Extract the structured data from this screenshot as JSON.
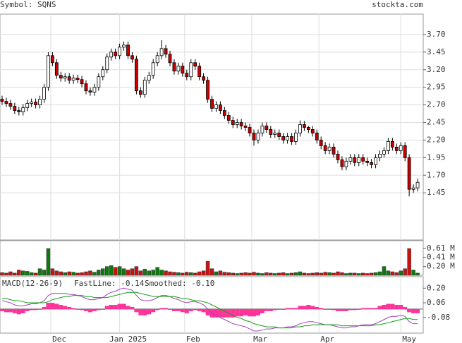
{
  "header": {
    "symbol": "Symbol: SQNS",
    "site": "stockta.com"
  },
  "chart_data": [
    {
      "type": "candlestick",
      "open": [
        2.78,
        2.75,
        2.72,
        2.68,
        2.62,
        2.6,
        2.66,
        2.72,
        2.74,
        2.7,
        2.78,
        2.95,
        3.4,
        3.3,
        3.12,
        3.08,
        3.1,
        3.05,
        3.08,
        3.06,
        3.0,
        2.9,
        2.88,
        2.95,
        3.1,
        3.2,
        3.38,
        3.45,
        3.4,
        3.52,
        3.55,
        3.4,
        3.35,
        2.9,
        2.85,
        3.05,
        3.12,
        3.3,
        3.4,
        3.5,
        3.42,
        3.3,
        3.18,
        3.25,
        3.15,
        3.1,
        3.3,
        3.25,
        3.1,
        3.05,
        2.78,
        2.65,
        2.7,
        2.62,
        2.55,
        2.48,
        2.42,
        2.45,
        2.4,
        2.38,
        2.3,
        2.2,
        2.3,
        2.4,
        2.35,
        2.28,
        2.3,
        2.25,
        2.2,
        2.25,
        2.18,
        2.3,
        2.42,
        2.38,
        2.35,
        2.3,
        2.2,
        2.12,
        2.05,
        2.1,
        2.0,
        1.92,
        1.82,
        1.9,
        1.95,
        1.88,
        1.95,
        1.9,
        1.88,
        1.85,
        1.95,
        2.0,
        2.05,
        2.18,
        2.1,
        2.05,
        2.12,
        1.95,
        1.5,
        1.52
      ],
      "high": [
        2.83,
        2.8,
        2.77,
        2.73,
        2.67,
        2.71,
        2.77,
        2.79,
        2.79,
        2.83,
        3.0,
        3.45,
        3.45,
        3.35,
        3.17,
        3.15,
        3.15,
        3.13,
        3.13,
        3.11,
        3.05,
        2.95,
        3.0,
        3.15,
        3.25,
        3.43,
        3.5,
        3.5,
        3.57,
        3.6,
        3.6,
        3.45,
        3.4,
        2.95,
        3.1,
        3.17,
        3.35,
        3.45,
        3.62,
        3.55,
        3.47,
        3.35,
        3.3,
        3.3,
        3.2,
        3.35,
        3.35,
        3.3,
        3.15,
        3.1,
        2.83,
        2.75,
        2.75,
        2.67,
        2.6,
        2.53,
        2.5,
        2.5,
        2.45,
        2.43,
        2.35,
        2.35,
        2.45,
        2.45,
        2.4,
        2.35,
        2.35,
        2.3,
        2.3,
        2.3,
        2.35,
        2.48,
        2.47,
        2.4,
        2.4,
        2.35,
        2.25,
        2.17,
        2.15,
        2.15,
        2.05,
        1.97,
        1.95,
        2.0,
        2.0,
        2.0,
        2.0,
        1.95,
        1.93,
        2.0,
        2.05,
        2.1,
        2.23,
        2.23,
        2.15,
        2.17,
        2.17,
        2.0,
        1.57,
        1.65
      ],
      "low": [
        2.7,
        2.67,
        2.63,
        2.57,
        2.55,
        2.55,
        2.61,
        2.67,
        2.65,
        2.65,
        2.73,
        2.9,
        3.25,
        3.07,
        3.03,
        3.03,
        3.0,
        3.0,
        3.01,
        2.95,
        2.85,
        2.83,
        2.83,
        2.9,
        3.05,
        3.15,
        3.33,
        3.35,
        3.35,
        3.47,
        3.35,
        3.3,
        2.85,
        2.8,
        2.8,
        3.0,
        3.07,
        3.25,
        3.35,
        3.37,
        3.25,
        3.13,
        3.13,
        3.1,
        3.05,
        3.05,
        3.2,
        3.05,
        3.0,
        2.73,
        2.6,
        2.6,
        2.57,
        2.5,
        2.43,
        2.37,
        2.37,
        2.35,
        2.33,
        2.25,
        2.12,
        2.15,
        2.25,
        2.3,
        2.23,
        2.23,
        2.2,
        2.15,
        2.15,
        2.13,
        2.13,
        2.25,
        2.33,
        2.3,
        2.25,
        2.15,
        2.07,
        2.0,
        2.0,
        1.95,
        1.87,
        1.77,
        1.77,
        1.85,
        1.83,
        1.83,
        1.85,
        1.83,
        1.8,
        1.8,
        1.9,
        1.95,
        2.0,
        2.05,
        2.0,
        2.0,
        1.9,
        1.4,
        1.45,
        1.47
      ],
      "close": [
        2.75,
        2.72,
        2.68,
        2.62,
        2.6,
        2.66,
        2.72,
        2.74,
        2.7,
        2.78,
        2.95,
        3.4,
        3.3,
        3.12,
        3.08,
        3.1,
        3.05,
        3.08,
        3.06,
        3.0,
        2.9,
        2.88,
        2.95,
        3.1,
        3.2,
        3.38,
        3.45,
        3.4,
        3.52,
        3.55,
        3.4,
        3.35,
        2.9,
        2.85,
        3.05,
        3.12,
        3.3,
        3.4,
        3.5,
        3.42,
        3.3,
        3.18,
        3.25,
        3.15,
        3.1,
        3.3,
        3.25,
        3.1,
        3.05,
        2.78,
        2.65,
        2.7,
        2.62,
        2.55,
        2.48,
        2.42,
        2.45,
        2.4,
        2.38,
        2.3,
        2.2,
        2.3,
        2.4,
        2.35,
        2.28,
        2.3,
        2.25,
        2.2,
        2.25,
        2.18,
        2.3,
        2.42,
        2.38,
        2.35,
        2.3,
        2.2,
        2.12,
        2.05,
        2.1,
        2.0,
        1.92,
        1.82,
        1.9,
        1.95,
        1.88,
        1.95,
        1.9,
        1.88,
        1.85,
        1.95,
        2.0,
        2.05,
        2.18,
        2.1,
        2.05,
        2.12,
        1.95,
        1.5,
        1.52,
        1.6
      ],
      "up_color": "#ffffff",
      "down_color": "#cc0000",
      "ylim": [
        0.78,
        3.99
      ],
      "yticks": [
        {
          "value": 3.7,
          "label": "3.70"
        },
        3.45,
        {
          "value": 3.2,
          "label": "3.20"
        },
        2.95,
        {
          "value": 2.7,
          "label": "2.70"
        },
        2.45,
        {
          "value": 2.2,
          "label": "2.20"
        },
        1.95,
        {
          "value": 1.7,
          "label": "1.70"
        },
        1.45
      ],
      "xticks": [
        {
          "value": 11.6,
          "label": "Dec"
        },
        {
          "value": 28,
          "label": "Jan 2025"
        },
        {
          "value": 43.5,
          "label": "Feb"
        },
        {
          "value": 59.5,
          "label": "Mar"
        },
        {
          "value": 75.5,
          "label": "Apr"
        },
        {
          "value": 95,
          "label": "May"
        }
      ],
      "grid": true
    },
    {
      "type": "volume",
      "values": [
        0.06,
        0.05,
        0.08,
        0.05,
        0.12,
        0.1,
        0.09,
        0.06,
        0.05,
        0.15,
        0.12,
        0.61,
        0.15,
        0.1,
        0.08,
        0.06,
        0.08,
        0.07,
        0.05,
        0.06,
        0.08,
        0.1,
        0.07,
        0.12,
        0.15,
        0.2,
        0.22,
        0.18,
        0.2,
        0.15,
        0.12,
        0.15,
        0.2,
        0.1,
        0.14,
        0.1,
        0.12,
        0.18,
        0.12,
        0.1,
        0.08,
        0.07,
        0.06,
        0.05,
        0.07,
        0.06,
        0.05,
        0.08,
        0.1,
        0.32,
        0.15,
        0.08,
        0.1,
        0.07,
        0.06,
        0.05,
        0.04,
        0.05,
        0.06,
        0.05,
        0.07,
        0.05,
        0.04,
        0.06,
        0.05,
        0.04,
        0.05,
        0.06,
        0.04,
        0.05,
        0.06,
        0.08,
        0.05,
        0.04,
        0.05,
        0.06,
        0.05,
        0.07,
        0.06,
        0.05,
        0.08,
        0.06,
        0.04,
        0.05,
        0.05,
        0.04,
        0.05,
        0.04,
        0.05,
        0.06,
        0.08,
        0.2,
        0.1,
        0.08,
        0.06,
        0.1,
        0.15,
        0.61,
        0.12,
        0.05
      ],
      "up_color": "#117711",
      "down_color": "#cc1111",
      "ylim": [
        0,
        0.79
      ],
      "yticks": [
        {
          "value": 0.61,
          "label": "0.61 M"
        },
        {
          "value": 0.41,
          "label": "0.41 M"
        },
        {
          "value": 0.2,
          "label": "0.20 M"
        }
      ]
    },
    {
      "type": "macd",
      "title": "MACD(12-26-9)",
      "fast_label": "FastLine: -0.14",
      "smooth_label": "Smoothed: -0.10",
      "series": [
        {
          "color": "#a040c0",
          "values": [
            0.08,
            0.07,
            0.06,
            0.04,
            0.03,
            0.03,
            0.04,
            0.05,
            0.05,
            0.06,
            0.08,
            0.13,
            0.15,
            0.15,
            0.15,
            0.15,
            0.14,
            0.14,
            0.13,
            0.12,
            0.1,
            0.09,
            0.09,
            0.1,
            0.11,
            0.14,
            0.16,
            0.17,
            0.19,
            0.2,
            0.19,
            0.18,
            0.13,
            0.09,
            0.08,
            0.08,
            0.09,
            0.11,
            0.13,
            0.13,
            0.12,
            0.1,
            0.09,
            0.07,
            0.06,
            0.07,
            0.07,
            0.06,
            0.04,
            0.0,
            -0.04,
            -0.06,
            -0.08,
            -0.1,
            -0.12,
            -0.14,
            -0.15,
            -0.16,
            -0.17,
            -0.19,
            -0.21,
            -0.21,
            -0.2,
            -0.19,
            -0.19,
            -0.18,
            -0.18,
            -0.18,
            -0.17,
            -0.17,
            -0.16,
            -0.14,
            -0.13,
            -0.12,
            -0.12,
            -0.13,
            -0.14,
            -0.15,
            -0.15,
            -0.16,
            -0.17,
            -0.18,
            -0.18,
            -0.17,
            -0.17,
            -0.16,
            -0.15,
            -0.15,
            -0.15,
            -0.14,
            -0.12,
            -0.1,
            -0.08,
            -0.07,
            -0.07,
            -0.06,
            -0.07,
            -0.12,
            -0.14,
            -0.14
          ]
        },
        {
          "color": "#10a010",
          "values": [
            0.1,
            0.1,
            0.09,
            0.08,
            0.08,
            0.07,
            0.06,
            0.06,
            0.06,
            0.06,
            0.06,
            0.07,
            0.09,
            0.1,
            0.11,
            0.12,
            0.12,
            0.13,
            0.13,
            0.13,
            0.12,
            0.12,
            0.11,
            0.11,
            0.11,
            0.11,
            0.12,
            0.13,
            0.14,
            0.15,
            0.16,
            0.16,
            0.16,
            0.15,
            0.14,
            0.13,
            0.12,
            0.12,
            0.12,
            0.12,
            0.12,
            0.12,
            0.11,
            0.1,
            0.1,
            0.09,
            0.08,
            0.08,
            0.07,
            0.06,
            0.04,
            0.02,
            0.0,
            -0.02,
            -0.04,
            -0.06,
            -0.08,
            -0.09,
            -0.11,
            -0.12,
            -0.14,
            -0.15,
            -0.16,
            -0.17,
            -0.17,
            -0.17,
            -0.18,
            -0.18,
            -0.18,
            -0.18,
            -0.17,
            -0.17,
            -0.16,
            -0.16,
            -0.15,
            -0.15,
            -0.15,
            -0.15,
            -0.15,
            -0.15,
            -0.15,
            -0.16,
            -0.16,
            -0.16,
            -0.16,
            -0.16,
            -0.16,
            -0.16,
            -0.16,
            -0.15,
            -0.15,
            -0.14,
            -0.13,
            -0.12,
            -0.11,
            -0.1,
            -0.09,
            -0.09,
            -0.1,
            -0.1
          ]
        }
      ],
      "histogram": {
        "color": "#ff3399",
        "values": [
          -0.02,
          -0.03,
          -0.03,
          -0.04,
          -0.05,
          -0.04,
          -0.02,
          -0.01,
          -0.01,
          0.0,
          0.02,
          0.06,
          0.06,
          0.05,
          0.04,
          0.03,
          0.02,
          0.01,
          0.0,
          -0.01,
          -0.02,
          -0.03,
          -0.02,
          -0.01,
          0.0,
          0.03,
          0.04,
          0.04,
          0.05,
          0.05,
          0.03,
          0.02,
          -0.03,
          -0.06,
          -0.06,
          -0.05,
          -0.03,
          -0.01,
          0.01,
          0.01,
          0.0,
          -0.02,
          -0.02,
          -0.03,
          -0.04,
          -0.02,
          -0.01,
          -0.02,
          -0.03,
          -0.06,
          -0.08,
          -0.08,
          -0.08,
          -0.08,
          -0.08,
          -0.08,
          -0.07,
          -0.07,
          -0.06,
          -0.07,
          -0.07,
          -0.06,
          -0.04,
          -0.02,
          -0.02,
          -0.01,
          0.0,
          0.0,
          0.01,
          0.01,
          0.01,
          0.03,
          0.03,
          0.04,
          0.03,
          0.02,
          0.01,
          0.0,
          0.0,
          -0.01,
          -0.02,
          -0.02,
          -0.02,
          -0.01,
          -0.01,
          0.0,
          0.01,
          0.01,
          0.01,
          0.01,
          0.03,
          0.04,
          0.05,
          0.05,
          0.04,
          0.04,
          0.02,
          -0.03,
          -0.04,
          -0.04
        ]
      },
      "ylim": [
        -0.23,
        0.31
      ],
      "yticks": [
        {
          "value": 0.2,
          "label": "0.20"
        },
        0.06,
        -0.08
      ]
    }
  ]
}
